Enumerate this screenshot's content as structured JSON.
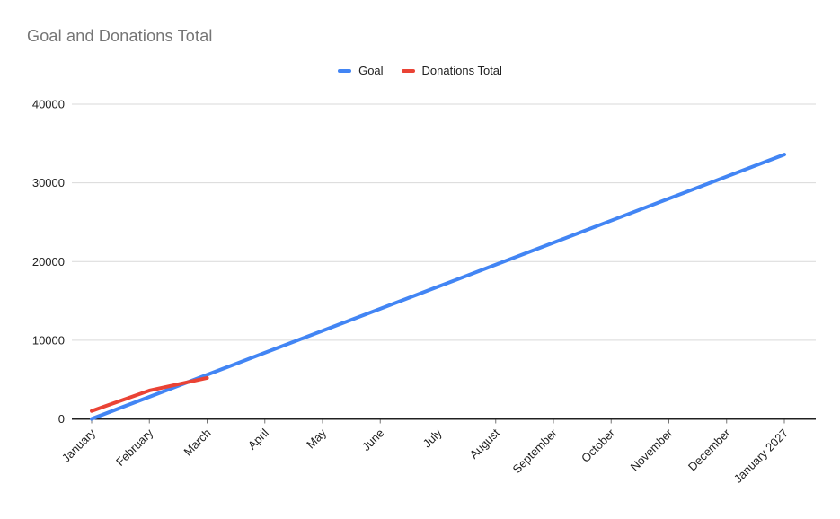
{
  "chart_data": {
    "type": "line",
    "title": "Goal and Donations Total",
    "categories": [
      "January",
      "February",
      "March",
      "April",
      "May",
      "June",
      "July",
      "August",
      "September",
      "October",
      "November",
      "December",
      "January 2027"
    ],
    "series": [
      {
        "name": "Goal",
        "color": "#4285F4",
        "values": [
          0,
          2800,
          5600,
          8400,
          11200,
          14000,
          16800,
          19600,
          22400,
          25200,
          28000,
          30800,
          33600
        ]
      },
      {
        "name": "Donations Total",
        "color": "#EA4335",
        "values": [
          1000,
          3600,
          5200
        ]
      }
    ],
    "xlabel": "",
    "ylabel": "",
    "ylim": [
      0,
      40000
    ],
    "yticks": [
      0,
      10000,
      20000,
      30000,
      40000
    ],
    "grid": "horizontal",
    "legend_position": "top",
    "x_label_rotation": 45
  },
  "colors": {
    "title_text": "#757575",
    "axis_text": "#212121",
    "gridline": "#d9d9d9",
    "axis_line": "#212121",
    "tick_mark": "#757575",
    "background": "#ffffff"
  }
}
